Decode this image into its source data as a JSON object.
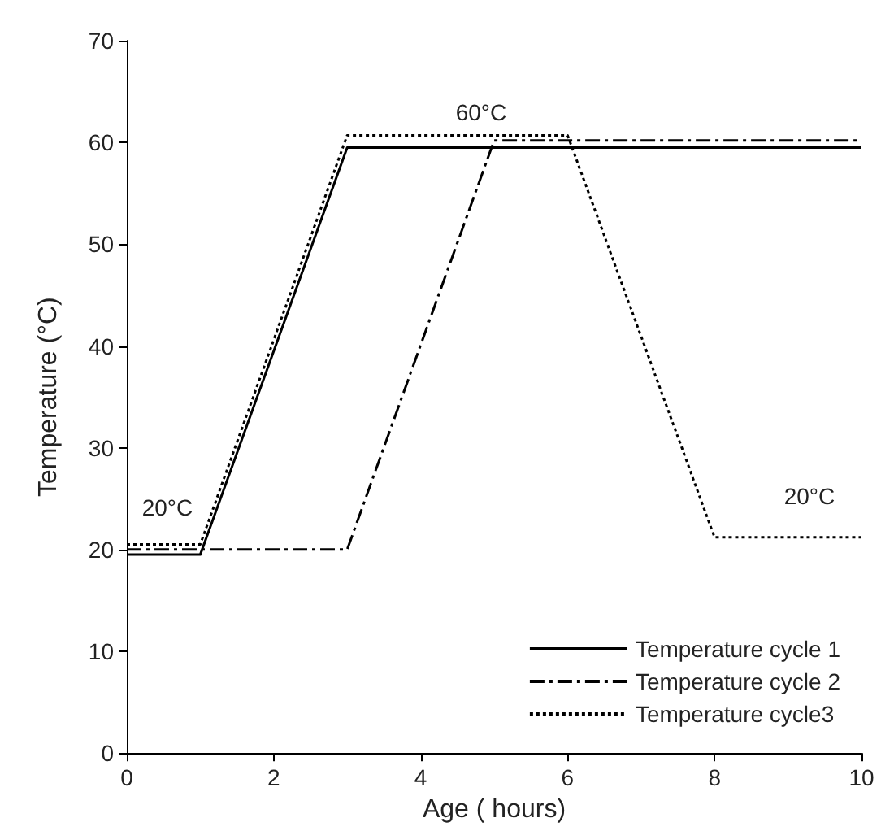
{
  "chart_data": {
    "type": "line",
    "xlabel": "Age ( hours)",
    "ylabel": "Temperature (°C)",
    "xlim": [
      0,
      10
    ],
    "xticks": [
      0,
      2,
      4,
      6,
      8,
      10
    ],
    "ylim": [
      0,
      70
    ],
    "yticks": [
      0,
      10,
      20,
      30,
      40,
      50,
      60,
      70
    ],
    "grid": false,
    "legend": "bottom right",
    "marker": "none",
    "series": [
      {
        "name": "Temperature cycle 1",
        "color": "#000000",
        "line_style": "solid",
        "x": [
          0,
          1,
          3,
          10
        ],
        "values": [
          19.5,
          19.5,
          59.5,
          59.5
        ]
      },
      {
        "name": "Temperature cycle 2",
        "color": "#000000",
        "line_style": "dashed",
        "x": [
          0,
          3,
          5,
          10
        ],
        "values": [
          20,
          20,
          60.2,
          60.2
        ]
      },
      {
        "name": "Temperature cycle3",
        "color": "#000000",
        "line_style": "dotted",
        "x": [
          0,
          1,
          3,
          6,
          8,
          10
        ],
        "values": [
          20.5,
          20.5,
          60.7,
          60.7,
          21.2,
          21.2
        ]
      }
    ],
    "annotations": [
      "60°C",
      "20°C",
      "20°C"
    ]
  }
}
